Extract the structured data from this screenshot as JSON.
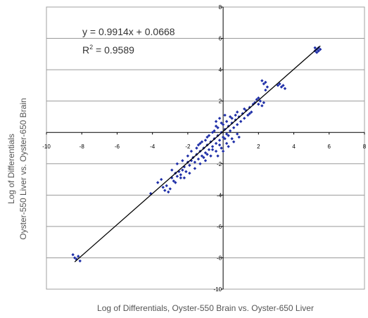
{
  "chart_data": {
    "type": "scatter",
    "xlabel": "Log of Differentials, Oyster-550 Brain vs. Oyster-650 Liver",
    "ylabel_line1": "Log of Differentials",
    "ylabel_line2": "Oyster-550 Liver vs. Oyster-650 Brain",
    "xlim": [
      -10,
      8
    ],
    "ylim": [
      -10,
      8
    ],
    "xticks": [
      "-10",
      "-8",
      "-6",
      "-4",
      "-2",
      "0",
      "2",
      "4",
      "6",
      "8"
    ],
    "yticks": [
      "-10",
      "-8",
      "-6",
      "-4",
      "-2",
      "0",
      "2",
      "4",
      "6",
      "8"
    ],
    "grid": "horizontal",
    "annotations": {
      "equation": "y = 0.9914x + 0.0668",
      "r2_prefix": "R",
      "r2_sup": "2",
      "r2_value": " = 0.9589"
    },
    "trendline": {
      "slope": 0.9914,
      "intercept": 0.0668,
      "x_range": [
        -8.4,
        5.5
      ]
    },
    "marker_color": "#1f2fa8",
    "line_color": "#000000",
    "points": [
      [
        -8.5,
        -7.8
      ],
      [
        -8.3,
        -8.1
      ],
      [
        -8.2,
        -7.9
      ],
      [
        -8.1,
        -8.2
      ],
      [
        -8.4,
        -8.0
      ],
      [
        -4.1,
        -3.9
      ],
      [
        -3.4,
        -3.5
      ],
      [
        -3.3,
        -3.7
      ],
      [
        -3.2,
        -3.4
      ],
      [
        -3.0,
        -3.6
      ],
      [
        -3.1,
        -3.8
      ],
      [
        -2.9,
        -2.9
      ],
      [
        -2.8,
        -3.1
      ],
      [
        -2.7,
        -2.6
      ],
      [
        -2.6,
        -2.8
      ],
      [
        -2.5,
        -2.5
      ],
      [
        -2.4,
        -2.7
      ],
      [
        -2.3,
        -2.4
      ],
      [
        -2.2,
        -2.2
      ],
      [
        -2.1,
        -2.5
      ],
      [
        -2.0,
        -1.9
      ],
      [
        -1.9,
        -2.1
      ],
      [
        -1.8,
        -1.8
      ],
      [
        -1.7,
        -1.6
      ],
      [
        -1.6,
        -1.9
      ],
      [
        -1.5,
        -1.4
      ],
      [
        -1.4,
        -1.7
      ],
      [
        -1.3,
        -1.2
      ],
      [
        -1.2,
        -1.5
      ],
      [
        -1.1,
        -1.0
      ],
      [
        -1.0,
        -1.3
      ],
      [
        -0.9,
        -0.8
      ],
      [
        -0.8,
        -1.1
      ],
      [
        -0.7,
        -0.6
      ],
      [
        -0.6,
        -0.9
      ],
      [
        -0.5,
        -0.4
      ],
      [
        -0.4,
        -0.7
      ],
      [
        -0.3,
        -0.2
      ],
      [
        -0.2,
        -0.5
      ],
      [
        -0.1,
        0.0
      ],
      [
        0.0,
        -0.3
      ],
      [
        0.1,
        0.2
      ],
      [
        0.2,
        -0.1
      ],
      [
        0.3,
        0.4
      ],
      [
        0.4,
        0.1
      ],
      [
        0.5,
        0.6
      ],
      [
        0.6,
        0.3
      ],
      [
        0.7,
        0.8
      ],
      [
        0.8,
        0.5
      ],
      [
        0.9,
        1.0
      ],
      [
        1.0,
        0.7
      ],
      [
        1.1,
        1.2
      ],
      [
        1.2,
        0.9
      ],
      [
        1.3,
        1.4
      ],
      [
        -2.6,
        -2.0
      ],
      [
        -2.3,
        -1.8
      ],
      [
        -2.0,
        -1.5
      ],
      [
        -1.8,
        -1.2
      ],
      [
        -1.5,
        -1.0
      ],
      [
        -1.3,
        -0.7
      ],
      [
        -1.0,
        -0.5
      ],
      [
        -0.8,
        -0.2
      ],
      [
        -0.5,
        0.1
      ],
      [
        -0.3,
        0.3
      ],
      [
        0.0,
        0.5
      ],
      [
        0.2,
        0.7
      ],
      [
        -2.2,
        -2.9
      ],
      [
        -1.9,
        -2.6
      ],
      [
        -1.6,
        -2.3
      ],
      [
        -1.3,
        -2.0
      ],
      [
        -1.0,
        -1.8
      ],
      [
        -0.7,
        -1.5
      ],
      [
        -0.4,
        -1.2
      ],
      [
        -0.1,
        -1.0
      ],
      [
        0.2,
        -0.7
      ],
      [
        0.5,
        -0.4
      ],
      [
        0.8,
        -0.1
      ],
      [
        -3.7,
        -3.2
      ],
      [
        -3.5,
        -3.0
      ],
      [
        -2.9,
        -2.4
      ],
      [
        -2.7,
        -3.2
      ],
      [
        -2.4,
        -2.9
      ],
      [
        -1.1,
        -1.6
      ],
      [
        -0.9,
        -1.4
      ],
      [
        -0.6,
        -1.1
      ],
      [
        -0.2,
        -0.8
      ],
      [
        0.1,
        -0.4
      ],
      [
        0.3,
        -0.2
      ],
      [
        -1.4,
        -0.8
      ],
      [
        -1.2,
        -0.6
      ],
      [
        -0.9,
        -0.3
      ],
      [
        -0.6,
        0.0
      ],
      [
        -0.4,
        0.4
      ],
      [
        -0.1,
        0.6
      ],
      [
        -0.3,
        -1.5
      ],
      [
        0.0,
        -1.2
      ],
      [
        0.3,
        -0.9
      ],
      [
        0.6,
        -0.6
      ],
      [
        0.9,
        -0.3
      ],
      [
        1.9,
        2.1
      ],
      [
        2.0,
        1.8
      ],
      [
        2.1,
        2.0
      ],
      [
        2.2,
        1.7
      ],
      [
        1.8,
        1.9
      ],
      [
        2.3,
        1.9
      ],
      [
        2.0,
        2.2
      ],
      [
        2.2,
        3.3
      ],
      [
        2.3,
        3.1
      ],
      [
        2.4,
        3.2
      ],
      [
        2.5,
        2.9
      ],
      [
        2.4,
        2.7
      ],
      [
        3.1,
        3.0
      ],
      [
        3.3,
        2.9
      ],
      [
        3.5,
        2.8
      ],
      [
        3.4,
        3.0
      ],
      [
        3.2,
        3.1
      ],
      [
        5.2,
        5.4
      ],
      [
        5.3,
        5.3
      ],
      [
        5.4,
        5.2
      ],
      [
        5.3,
        5.1
      ],
      [
        5.2,
        5.2
      ],
      [
        5.4,
        5.4
      ],
      [
        5.5,
        5.3
      ],
      [
        1.4,
        1.1
      ],
      [
        1.5,
        1.6
      ],
      [
        1.6,
        1.3
      ],
      [
        1.7,
        1.8
      ],
      [
        1.5,
        1.2
      ],
      [
        1.2,
        1.5
      ],
      [
        0.7,
        1.1
      ],
      [
        -0.2,
        0.9
      ],
      [
        0.4,
        1.0
      ],
      [
        0.1,
        1.1
      ],
      [
        -0.4,
        0.7
      ],
      [
        0.5,
        0.9
      ],
      [
        0.8,
        1.3
      ]
    ]
  }
}
